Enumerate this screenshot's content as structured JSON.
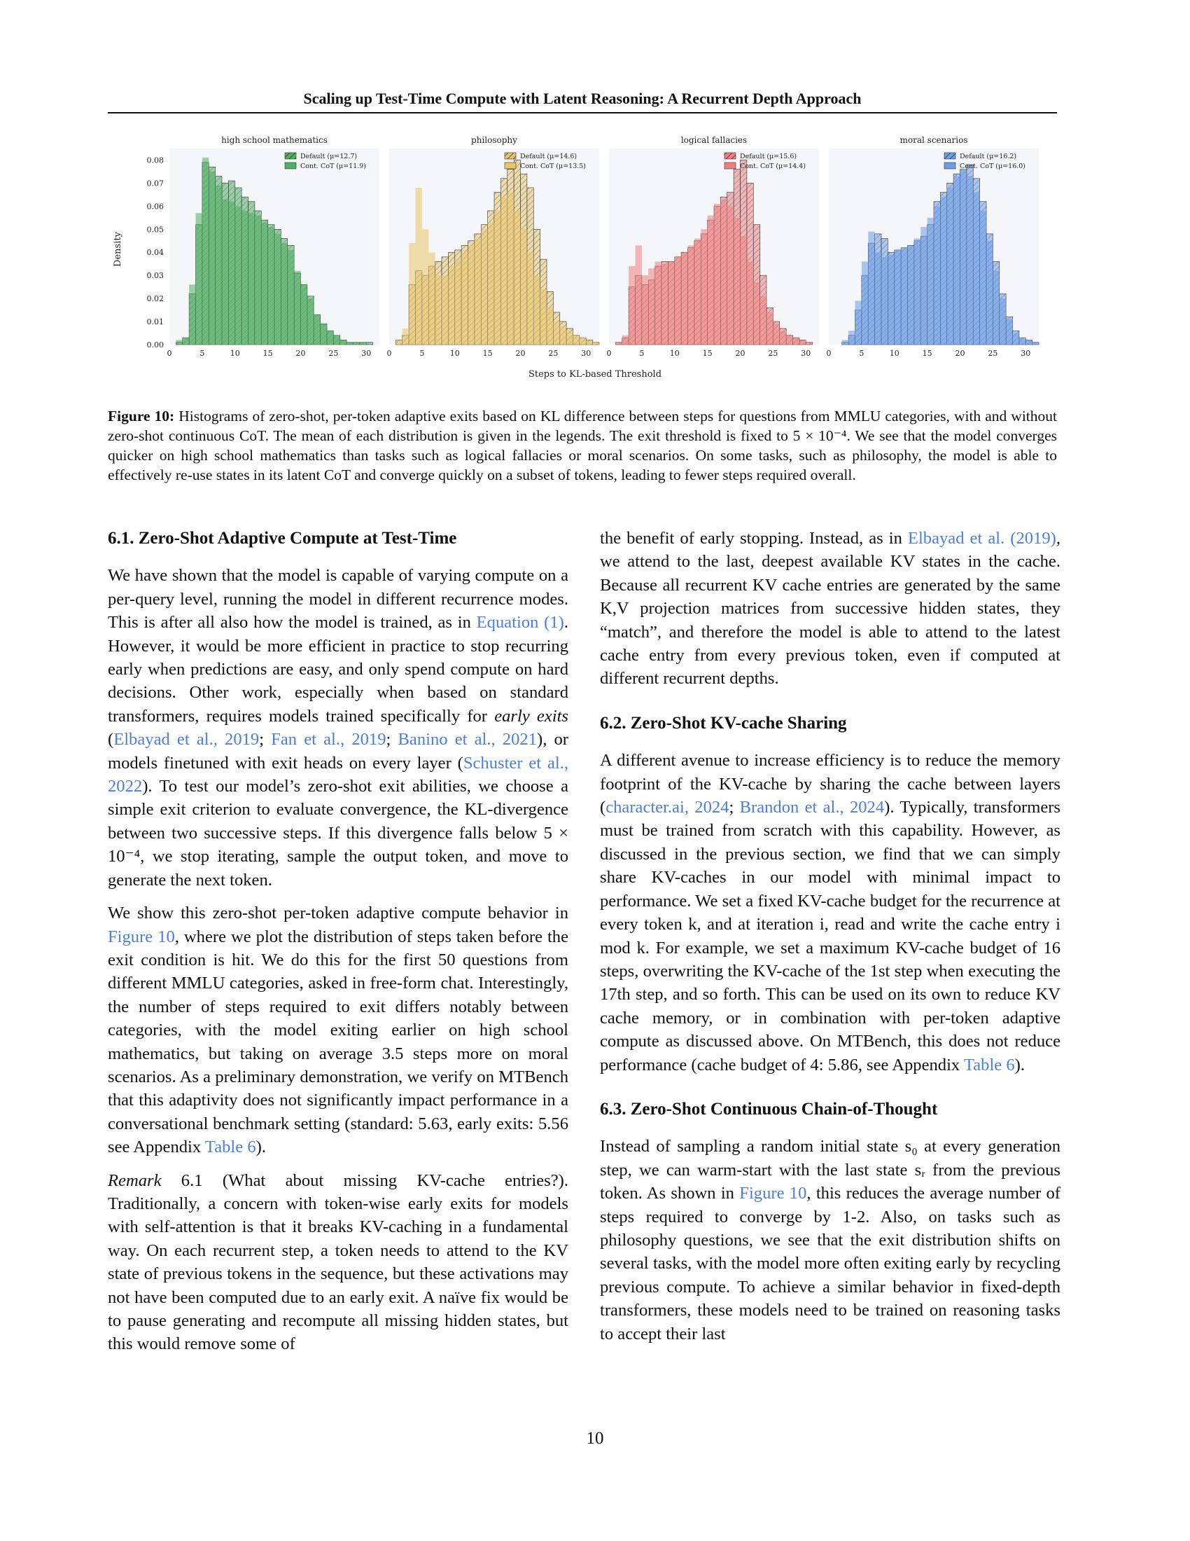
{
  "header": {
    "title": "Scaling up Test-Time Compute with Latent Reasoning: A Recurrent Depth Approach"
  },
  "figure": {
    "number": "Figure 10:",
    "caption": "Histograms of zero-shot, per-token adaptive exits based on KL difference between steps for questions from MMLU categories, with and without zero-shot continuous CoT. The mean of each distribution is given in the legends. The exit threshold is fixed to 5 × 10⁻⁴. We see that the model converges quicker on high school mathematics than tasks such as logical fallacies or moral scenarios. On some tasks, such as philosophy, the model is able to effectively re-use states in its latent CoT and converge quickly on a subset of tokens, leading to fewer steps required overall."
  },
  "chart_data": {
    "type": "bar",
    "subtype": "histogram",
    "xlabel": "Steps to KL-based Threshold",
    "ylabel": "Density",
    "xlim": [
      0,
      32
    ],
    "ylim": [
      0,
      0.085
    ],
    "xticks": [
      0,
      5,
      10,
      15,
      20,
      25,
      30
    ],
    "yticks": [
      "0.00",
      "0.01",
      "0.02",
      "0.03",
      "0.04",
      "0.05",
      "0.06",
      "0.07",
      "0.08"
    ],
    "bins": [
      1,
      2,
      3,
      4,
      5,
      6,
      7,
      8,
      9,
      10,
      11,
      12,
      13,
      14,
      15,
      16,
      17,
      18,
      19,
      20,
      21,
      22,
      23,
      24,
      25,
      26,
      27,
      28,
      29,
      30,
      31,
      32
    ],
    "panels": [
      {
        "title": "high school mathematics",
        "color": "#4daf5f",
        "series": [
          {
            "name": "Default (μ=12.7)",
            "hatched": true,
            "values": [
              0.0,
              0.001,
              0.003,
              0.022,
              0.052,
              0.079,
              0.077,
              0.073,
              0.07,
              0.071,
              0.068,
              0.064,
              0.062,
              0.058,
              0.054,
              0.052,
              0.05,
              0.046,
              0.043,
              0.031,
              0.026,
              0.021,
              0.013,
              0.009,
              0.006,
              0.004,
              0.002,
              0.001,
              0.001,
              0.001,
              0.001,
              0.0
            ]
          },
          {
            "name": "Cont. CoT (μ=11.9)",
            "hatched": false,
            "values": [
              0.0,
              0.002,
              0.003,
              0.026,
              0.057,
              0.081,
              0.075,
              0.069,
              0.063,
              0.062,
              0.06,
              0.058,
              0.057,
              0.056,
              0.053,
              0.051,
              0.048,
              0.044,
              0.041,
              0.032,
              0.026,
              0.02,
              0.013,
              0.009,
              0.006,
              0.004,
              0.002,
              0.001,
              0.001,
              0.001,
              0.0,
              0.0
            ]
          }
        ]
      },
      {
        "title": "philosophy",
        "color": "#e9c46a",
        "series": [
          {
            "name": "Default (μ=14.6)",
            "hatched": true,
            "values": [
              0.0,
              0.002,
              0.004,
              0.026,
              0.032,
              0.03,
              0.034,
              0.036,
              0.038,
              0.04,
              0.041,
              0.043,
              0.045,
              0.048,
              0.052,
              0.058,
              0.066,
              0.072,
              0.076,
              0.08,
              0.074,
              0.068,
              0.05,
              0.037,
              0.023,
              0.014,
              0.01,
              0.007,
              0.004,
              0.003,
              0.002,
              0.001
            ]
          },
          {
            "name": "Cont. CoT (μ=13.5)",
            "hatched": false,
            "values": [
              0.0,
              0.002,
              0.007,
              0.044,
              0.068,
              0.05,
              0.04,
              0.03,
              0.03,
              0.034,
              0.037,
              0.04,
              0.043,
              0.046,
              0.05,
              0.053,
              0.058,
              0.064,
              0.066,
              0.058,
              0.05,
              0.04,
              0.03,
              0.024,
              0.016,
              0.01,
              0.008,
              0.006,
              0.004,
              0.003,
              0.002,
              0.001
            ]
          }
        ]
      },
      {
        "title": "logical fallacies",
        "color": "#f08080",
        "series": [
          {
            "name": "Default (μ=15.6)",
            "hatched": true,
            "values": [
              0.0,
              0.001,
              0.003,
              0.025,
              0.03,
              0.026,
              0.028,
              0.034,
              0.036,
              0.036,
              0.038,
              0.04,
              0.042,
              0.045,
              0.048,
              0.054,
              0.06,
              0.064,
              0.066,
              0.076,
              0.08,
              0.07,
              0.052,
              0.03,
              0.016,
              0.01,
              0.007,
              0.004,
              0.003,
              0.002,
              0.001,
              0.0
            ]
          },
          {
            "name": "Cont. CoT (μ=14.4)",
            "hatched": false,
            "values": [
              0.0,
              0.001,
              0.004,
              0.034,
              0.043,
              0.03,
              0.033,
              0.036,
              0.035,
              0.036,
              0.038,
              0.04,
              0.043,
              0.046,
              0.05,
              0.056,
              0.061,
              0.063,
              0.06,
              0.055,
              0.047,
              0.036,
              0.027,
              0.021,
              0.014,
              0.009,
              0.006,
              0.004,
              0.003,
              0.002,
              0.001,
              0.0
            ]
          }
        ]
      },
      {
        "title": "moral scenarios",
        "color": "#6b9de8",
        "series": [
          {
            "name": "Default (μ=16.2)",
            "hatched": true,
            "values": [
              0.0,
              0.0,
              0.001,
              0.004,
              0.015,
              0.03,
              0.044,
              0.048,
              0.046,
              0.04,
              0.041,
              0.042,
              0.043,
              0.045,
              0.047,
              0.052,
              0.062,
              0.066,
              0.07,
              0.074,
              0.076,
              0.078,
              0.072,
              0.062,
              0.048,
              0.036,
              0.022,
              0.012,
              0.006,
              0.003,
              0.002,
              0.001
            ]
          },
          {
            "name": "Cont. CoT (μ=16.0)",
            "hatched": false,
            "values": [
              0.0,
              0.0,
              0.002,
              0.006,
              0.019,
              0.036,
              0.049,
              0.04,
              0.038,
              0.039,
              0.041,
              0.042,
              0.043,
              0.046,
              0.051,
              0.055,
              0.06,
              0.064,
              0.068,
              0.073,
              0.076,
              0.073,
              0.066,
              0.058,
              0.045,
              0.032,
              0.02,
              0.011,
              0.005,
              0.003,
              0.002,
              0.001
            ]
          }
        ]
      }
    ]
  },
  "sections": {
    "s61": {
      "heading": "6.1. Zero-Shot Adaptive Compute at Test-Time",
      "p1": {
        "a": "We have shown that the model is capable of varying compute on a per-query level, running the model in different recurrence modes. This is after all also how the model is trained, as in ",
        "ref1": "Equation (1)",
        "b": ". However, it would be more efficient in practice to stop recurring early when predictions are easy, and only spend compute on hard decisions. Other work, especially when based on standard transformers, requires models trained specifically for ",
        "em": "early exits",
        "c": " (",
        "cite1": "Elbayad et al., 2019",
        "d": "; ",
        "cite2": "Fan et al., 2019",
        "e": "; ",
        "cite3": "Banino et al., 2021",
        "f": "), or models finetuned with exit heads on every layer (",
        "cite4": "Schuster et al., 2022",
        "g": "). To test our model’s zero-shot exit abilities, we choose a simple exit criterion to evaluate convergence, the KL-divergence between two successive steps. If this divergence falls below 5 × 10⁻⁴, we stop iterating, sample the output token, and move to generate the next token."
      },
      "p2": {
        "a": "We show this zero-shot per-token adaptive compute behavior in ",
        "ref1": "Figure 10",
        "b": ", where we plot the distribution of steps taken before the exit condition is hit. We do this for the first 50 questions from different MMLU categories, asked in free-form chat. Interestingly, the number of steps required to exit differs notably between categories, with the model exiting earlier on high school mathematics, but taking on average 3.5 steps more on moral scenarios. As a preliminary demonstration, we verify on MTBench that this adaptivity does not significantly impact performance in a conversational benchmark setting (standard: 5.63, early exits: 5.56 see Appendix ",
        "ref2": "Table 6",
        "c": ")."
      },
      "p3": {
        "label": "Remark",
        "a": " 6.1 (What about missing KV-cache entries?). Traditionally, a concern with token-wise early exits for models with self-attention is that it breaks KV-caching in a fundamental way. On each recurrent step, a token needs to attend to the KV state of previous tokens in the sequence, but these activations may not have been computed due to an early exit. A naïve fix would be to pause generating and recompute all missing hidden states, but this would remove some of"
      }
    },
    "right_cont": {
      "a": "the benefit of early stopping. Instead, as in ",
      "cite1": "Elbayad et al. (2019)",
      "b": ", we attend to the last, deepest available KV states in the cache. Because all recurrent KV cache entries are generated by the same K,V projection matrices from successive hidden states, they “match”, and therefore the model is able to attend to the latest cache entry from every previous token, even if computed at different recurrent depths."
    },
    "s62": {
      "heading": "6.2. Zero-Shot KV-cache Sharing",
      "p1": {
        "a": "A different avenue to increase efficiency is to reduce the memory footprint of the KV-cache by sharing the cache between layers (",
        "cite1": "character.ai, 2024",
        "b": "; ",
        "cite2": "Brandon et al., 2024",
        "c": "). Typically, transformers must be trained from scratch with this capability. However, as discussed in the previous section, we find that we can simply share KV-caches in our model with minimal impact to performance. We set a fixed KV-cache budget for the recurrence at every token k, and at iteration i, read and write the cache entry i mod k. For example, we set a maximum KV-cache budget of 16 steps, overwriting the KV-cache of the 1st step when executing the 17th step, and so forth. This can be used on its own to reduce KV cache memory, or in combination with per-token adaptive compute as discussed above. On MTBench, this does not reduce performance (cache budget of 4: 5.86, see Appendix ",
        "ref1": "Table 6",
        "d": ")."
      }
    },
    "s63": {
      "heading": "6.3. Zero-Shot Continuous Chain-of-Thought",
      "p1": {
        "a": "Instead of sampling a random initial state s₀ at every generation step, we can warm-start with the last state sᵣ from the previous token. As shown in ",
        "ref1": "Figure 10",
        "b": ", this reduces the average number of steps required to converge by 1-2. Also, on tasks such as philosophy questions, we see that the exit distribution shifts on several tasks, with the model more often exiting early by recycling previous compute. To achieve a similar behavior in fixed-depth transformers, these models need to be trained on reasoning tasks to accept their last"
      }
    }
  },
  "page_number": "10"
}
